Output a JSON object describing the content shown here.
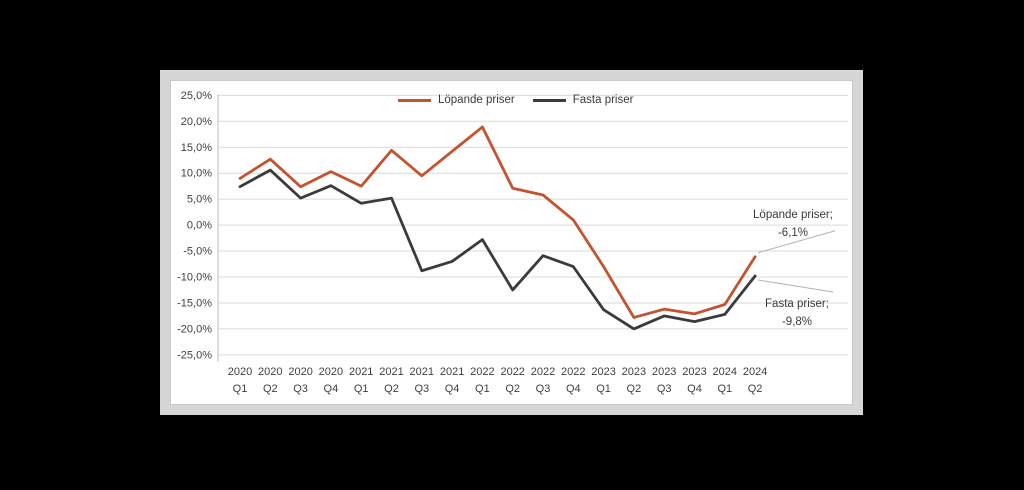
{
  "canvas": {
    "background": "#000000",
    "panel_background": "#ffffff",
    "panel_border_color": "#d6d6d6"
  },
  "legend": {
    "items": [
      {
        "label": "Löpande priser",
        "color": "#c4532f"
      },
      {
        "label": "Fasta priser",
        "color": "#3b3b3b"
      }
    ]
  },
  "annotations": [
    {
      "id": "lopande-endpoint",
      "line1": "Löpande priser;",
      "line2": "-6,1%"
    },
    {
      "id": "fasta-endpoint",
      "line1": "Fasta priser;",
      "line2": "-9,8%"
    }
  ],
  "chart_data": {
    "type": "line",
    "categories": [
      "2020 Q1",
      "2020 Q2",
      "2020 Q3",
      "2020 Q4",
      "2021 Q1",
      "2021 Q2",
      "2021 Q3",
      "2021 Q4",
      "2022 Q1",
      "2022 Q2",
      "2022 Q3",
      "2022 Q4",
      "2023 Q1",
      "2023 Q2",
      "2023 Q3",
      "2023 Q4",
      "2024 Q1",
      "2024 Q2"
    ],
    "series": [
      {
        "name": "Löpande priser",
        "color": "#c4532f",
        "values": [
          9.0,
          12.7,
          7.4,
          10.3,
          7.5,
          14.4,
          9.5,
          14.2,
          18.9,
          7.1,
          5.8,
          1.0,
          -8.0,
          -17.8,
          -16.2,
          -17.1,
          -15.3,
          -6.1
        ]
      },
      {
        "name": "Fasta priser",
        "color": "#3b3b3b",
        "values": [
          7.4,
          10.6,
          5.2,
          7.6,
          4.2,
          5.2,
          -8.8,
          -7.0,
          -2.8,
          -12.5,
          -5.9,
          -8.0,
          -16.3,
          -20.0,
          -17.5,
          -18.6,
          -17.2,
          -9.8
        ]
      }
    ],
    "title": "",
    "xlabel": "",
    "ylabel": "",
    "ylim": [
      -25,
      25
    ],
    "ytick_step": 5,
    "ytick_labels": [
      "25,0%",
      "20,0%",
      "15,0%",
      "10,0%",
      "5,0%",
      "0,0%",
      "-5,0%",
      "-10,0%",
      "-15,0%",
      "-20,0%",
      "-25,0%"
    ],
    "grid": true,
    "gridline_color": "#d9d9d9",
    "axis_line_color": "#bfbfbf",
    "axis_text_color": "#3f3f3f",
    "leader_line_color": "#b3b3b3",
    "legend_position": "top-center"
  }
}
